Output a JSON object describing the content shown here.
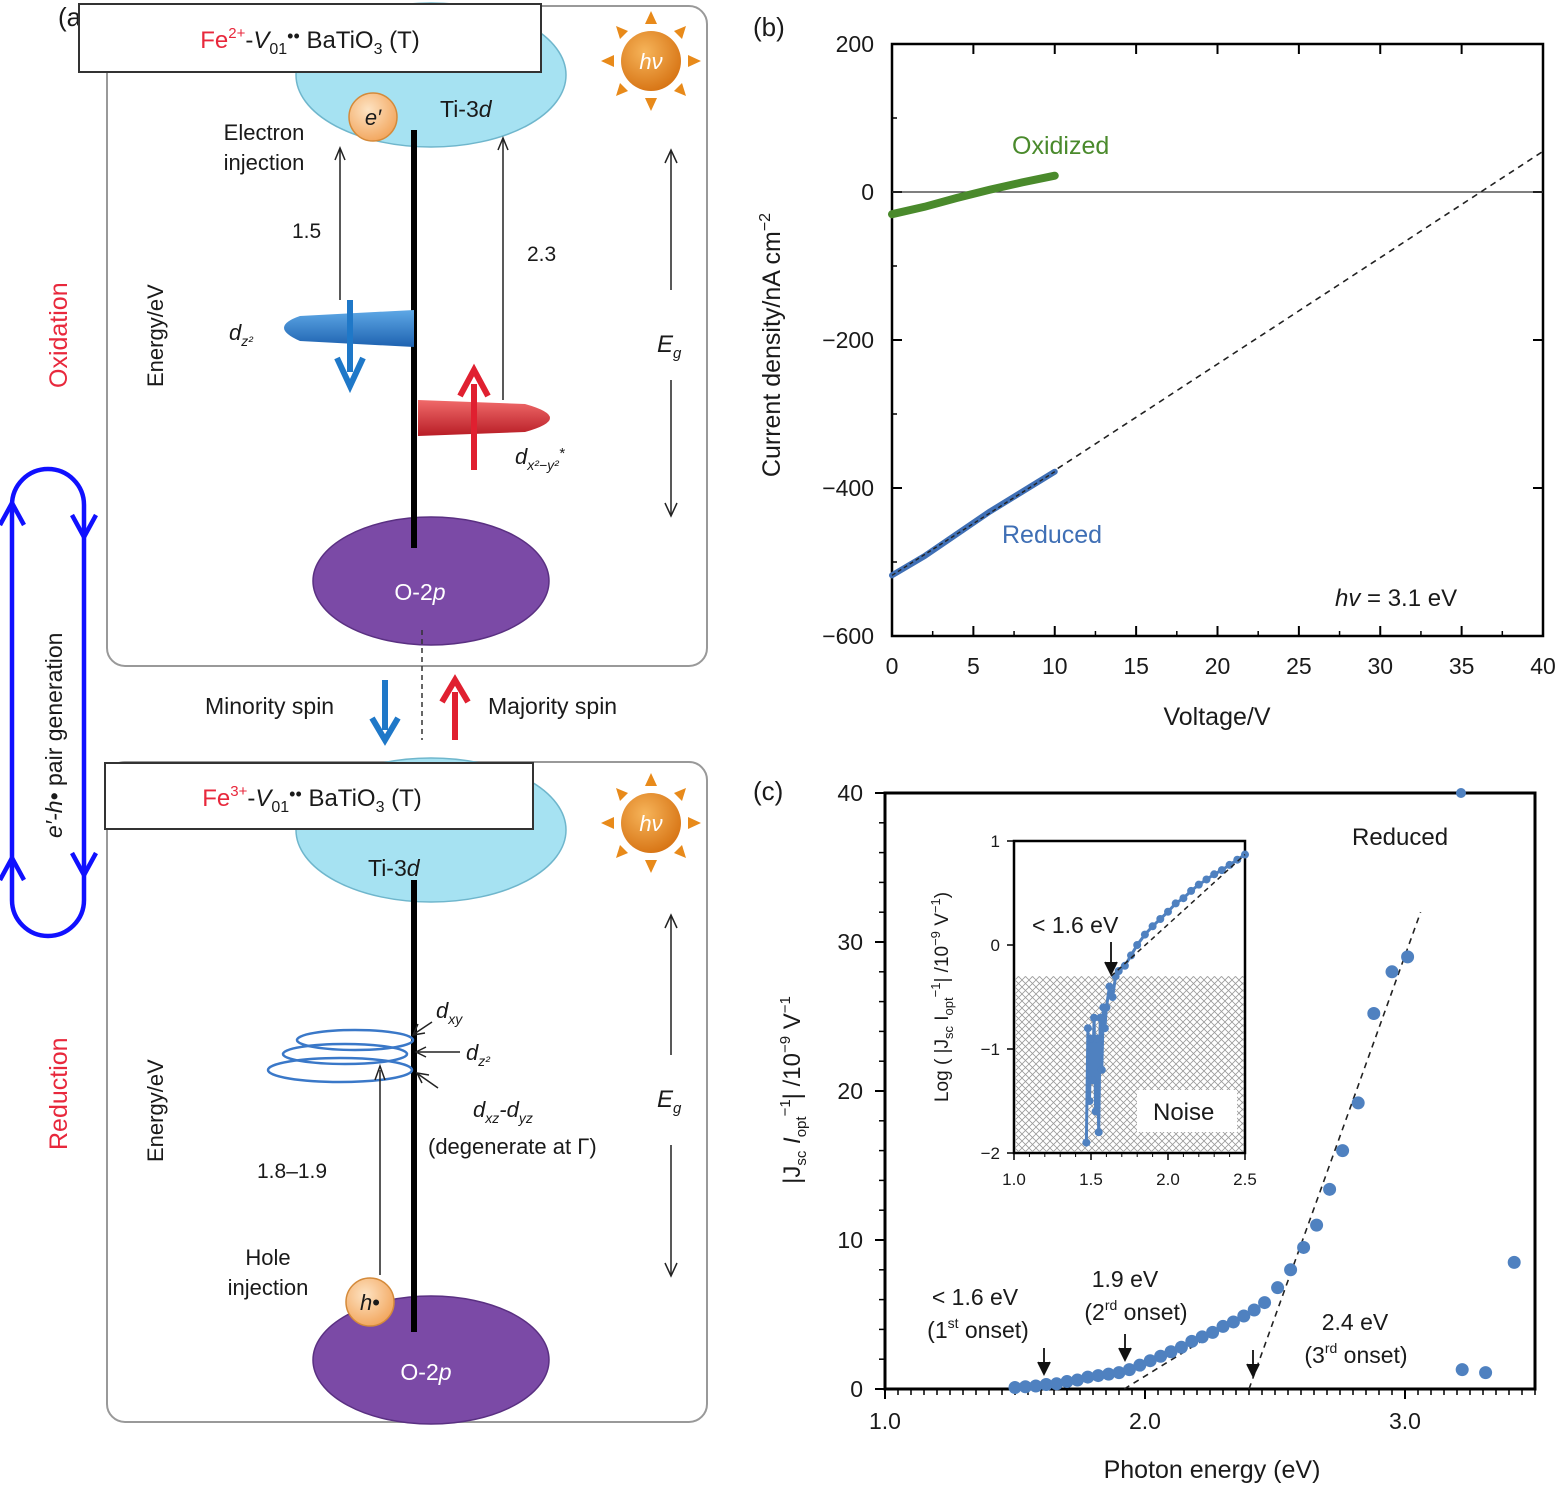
{
  "panel_a": {
    "label": "(a)",
    "top_box": {
      "ion": "Fe",
      "ion_charge": "2+",
      "vacancy": "V",
      "vacancy_sub": "01",
      "dots": "••",
      "host": "BaTiO",
      "host_sub": "3",
      "suffix": " (T)"
    },
    "bottom_box": {
      "ion": "Fe",
      "ion_charge": "3+",
      "vacancy": "V",
      "vacancy_sub": "01",
      "dots": "••",
      "host": "BaTiO",
      "host_sub": "3",
      "suffix": " (T)"
    },
    "sun_label": "hν",
    "ti_label": "Ti-3",
    "ti_orbital": "d",
    "o_label": "O-2",
    "o_orbital": "p",
    "electron_label": "e′",
    "hole_label": "h",
    "hole_dot": "•",
    "electron_injection": [
      "Electron",
      "injection"
    ],
    "hole_injection": [
      "Hole",
      "injection"
    ],
    "energy_axis": "Energy/eV",
    "gap_label": "E",
    "gap_sub": "g",
    "e_1_5": "1.5",
    "e_2_3": "2.3",
    "e_1_8_1_9": "1.8–1.9",
    "dz2": {
      "base": "d",
      "sub": "z²"
    },
    "dx2y2": {
      "base": "d",
      "sub": "x²−y²",
      "sup": "*"
    },
    "dxy": {
      "base": "d",
      "sub": "xy"
    },
    "dz2_red": {
      "base": "d",
      "sub": "z²"
    },
    "dxz_dyz": {
      "d1": "d",
      "s1": "xz",
      "mid": "-",
      "d2": "d",
      "s2": "yz"
    },
    "degenerate": "(degenerate at Γ)",
    "minority_spin": "Minority spin",
    "majority_spin": "Majority spin",
    "oxidation": "Oxidation",
    "reduction": "Reduction",
    "pair_gen": {
      "e": "e′-",
      "h": "h•",
      "rest": " pair generation"
    },
    "colors": {
      "blue_arrow": "#1f78c8",
      "red_arrow": "#e02030",
      "cycle": "#1010ff",
      "process_label": "#e8283c",
      "ti_band": "#a6e2f2",
      "o_band": "#7b4aa6",
      "box_border": "#999999"
    }
  },
  "panel_b": {
    "label": "(b)",
    "xlabel": "Voltage/V",
    "ylabel": "Current density/nA cm",
    "ylabel_sup": "−2",
    "annotation": {
      "italic": "hv",
      "rest": " = 3.1 eV"
    },
    "xticks": [
      "0",
      "5",
      "10",
      "15",
      "20",
      "25",
      "30",
      "35",
      "40"
    ],
    "yticks": [
      "200",
      "0",
      "−200",
      "−400",
      "−600"
    ]
  },
  "panel_c": {
    "label": "(c)",
    "xlabel": "Photon energy (eV)",
    "ylabel": {
      "p1": "|J",
      "s1": "sc",
      "p2": " I",
      "s2": "opt",
      "sup1": "−1",
      "p3": "| /10",
      "sup2": "−9",
      "p4": " V",
      "sup3": "−1"
    },
    "xticks": [
      "1.0",
      "2.0",
      "3.0"
    ],
    "yticks": [
      "0",
      "10",
      "20",
      "30",
      "40"
    ],
    "reduced_label": "Reduced",
    "onset1": {
      "value": "< 1.6 eV",
      "open": "(1",
      "sup": "st",
      "close": " onset)"
    },
    "onset2": {
      "value": "1.9 eV",
      "open": "(2",
      "sup": "rd",
      "close": " onset)"
    },
    "onset3": {
      "value": "2.4 eV",
      "open": "(3",
      "sup": "rd",
      "close": " onset)"
    },
    "inset": {
      "ylabel": {
        "p1": "Log ( |J",
        "s1": "sc",
        "p2": " I",
        "s2": "opt",
        "sup1": "−1",
        "p3": "| /10",
        "sup2": "−9",
        "p4": " V",
        "sup3": "−1",
        "p5": ")"
      },
      "xticks": [
        "1.0",
        "1.5",
        "2.0",
        "2.5"
      ],
      "yticks": [
        "1",
        "0",
        "−1",
        "−2"
      ],
      "onset_label": "< 1.6 eV",
      "noise_label": "Noise"
    }
  },
  "chart_data": [
    {
      "type": "line",
      "xlabel": "Voltage/V",
      "ylabel": "Current density/nA cm−2",
      "xlim": [
        0,
        40
      ],
      "ylim": [
        -600,
        200
      ],
      "series": [
        {
          "name": "Oxidized",
          "color": "#4a8a2c",
          "x": [
            0,
            2,
            4,
            6,
            8,
            10
          ],
          "y": [
            -30,
            -20,
            -8,
            3,
            13,
            22
          ]
        },
        {
          "name": "Reduced",
          "color": "#3f6fb5",
          "x": [
            0,
            2,
            4,
            6,
            8,
            10
          ],
          "y": [
            -518,
            -492,
            -462,
            -432,
            -405,
            -378
          ]
        }
      ],
      "fit_line": {
        "x": [
          0,
          40
        ],
        "y": [
          -520,
          55
        ],
        "style": "dashed"
      },
      "annotations": [
        "hv = 3.1 eV"
      ]
    },
    {
      "type": "scatter",
      "xlabel": "Photon energy (eV)",
      "xlim": [
        1.0,
        3.5
      ],
      "ylim": [
        0,
        40
      ],
      "series": [
        {
          "name": "Reduced",
          "color": "#4f81c0",
          "x": [
            1.5,
            1.54,
            1.58,
            1.62,
            1.66,
            1.7,
            1.74,
            1.78,
            1.82,
            1.86,
            1.9,
            1.94,
            1.98,
            2.02,
            2.06,
            2.1,
            2.14,
            2.18,
            2.22,
            2.26,
            2.3,
            2.34,
            2.38,
            2.42,
            2.46,
            2.51,
            2.56,
            2.61,
            2.66,
            2.71,
            2.76,
            2.82,
            2.88,
            2.95,
            3.01,
            3.22,
            3.31,
            3.42
          ],
          "y": [
            0.1,
            0.15,
            0.2,
            0.3,
            0.35,
            0.5,
            0.6,
            0.8,
            0.9,
            1.0,
            1.1,
            1.3,
            1.6,
            1.9,
            2.2,
            2.5,
            2.8,
            3.2,
            3.5,
            3.8,
            4.2,
            4.5,
            4.9,
            5.3,
            5.8,
            6.8,
            8.0,
            9.5,
            11.0,
            13.4,
            16.0,
            19.2,
            25.2,
            28.0,
            29.0,
            1.3,
            1.1,
            8.5
          ]
        }
      ],
      "fit_lines": [
        {
          "x": [
            1.92,
            2.42
          ],
          "y": [
            0,
            5.4
          ],
          "style": "dashed"
        },
        {
          "x": [
            2.4,
            3.06
          ],
          "y": [
            0,
            32
          ],
          "style": "dashed"
        }
      ],
      "annotations": [
        "< 1.6 eV (1st onset)",
        "1.9 eV (2rd onset)",
        "2.4 eV (3rd onset)"
      ]
    },
    {
      "type": "line",
      "title": "inset",
      "xlim": [
        1.0,
        2.5
      ],
      "ylim": [
        -2,
        1
      ],
      "series": [
        {
          "name": "Reduced",
          "color": "#4f81c0",
          "x": [
            1.47,
            1.48,
            1.49,
            1.5,
            1.51,
            1.52,
            1.53,
            1.54,
            1.55,
            1.56,
            1.57,
            1.58,
            1.59,
            1.6,
            1.62,
            1.64,
            1.66,
            1.68,
            1.72,
            1.76,
            1.8,
            1.85,
            1.9,
            1.95,
            2.0,
            2.05,
            2.1,
            2.15,
            2.2,
            2.25,
            2.3,
            2.35,
            2.4,
            2.45,
            2.5
          ],
          "y": [
            -1.9,
            -0.8,
            -1.5,
            -0.9,
            -1.3,
            -0.7,
            -1.6,
            -0.9,
            -1.8,
            -0.7,
            -1.2,
            -0.6,
            -0.8,
            -0.6,
            -0.4,
            -0.5,
            -0.3,
            -0.25,
            -0.2,
            -0.1,
            0.0,
            0.1,
            0.18,
            0.25,
            0.32,
            0.4,
            0.45,
            0.52,
            0.58,
            0.63,
            0.68,
            0.72,
            0.77,
            0.82,
            0.87
          ]
        }
      ],
      "fit_line": {
        "x": [
          1.63,
          2.5
        ],
        "y": [
          -0.3,
          0.87
        ],
        "style": "dashed"
      },
      "noise_floor": -0.3
    }
  ]
}
